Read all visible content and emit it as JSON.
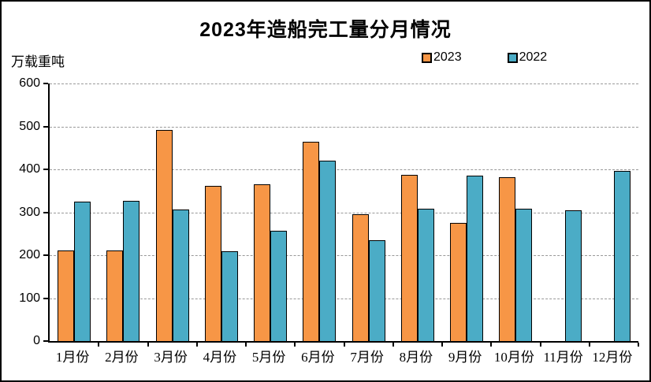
{
  "chart_data": {
    "type": "bar",
    "title": "2023年造船完工量分月情况",
    "ylabel": "万载重吨",
    "xlabel": "",
    "categories": [
      "1月份",
      "2月份",
      "3月份",
      "4月份",
      "5月份",
      "6月份",
      "7月份",
      "8月份",
      "9月份",
      "10月份",
      "11月份",
      "12月份"
    ],
    "series": [
      {
        "name": "2023",
        "color": "#F79646",
        "values": [
          211,
          211,
          492,
          362,
          366,
          464,
          295,
          388,
          276,
          381,
          null,
          null
        ]
      },
      {
        "name": "2022",
        "color": "#4BACC6",
        "values": [
          325,
          327,
          307,
          209,
          256,
          421,
          235,
          308,
          385,
          308,
          304,
          396
        ]
      }
    ],
    "ylim": [
      0,
      600
    ],
    "yticks": [
      0,
      100,
      200,
      300,
      400,
      500,
      600
    ],
    "grid": "horizontal-dashed",
    "legend_position": "top-right",
    "bar_border_color": "#000000",
    "gridline_color": "#999999"
  }
}
